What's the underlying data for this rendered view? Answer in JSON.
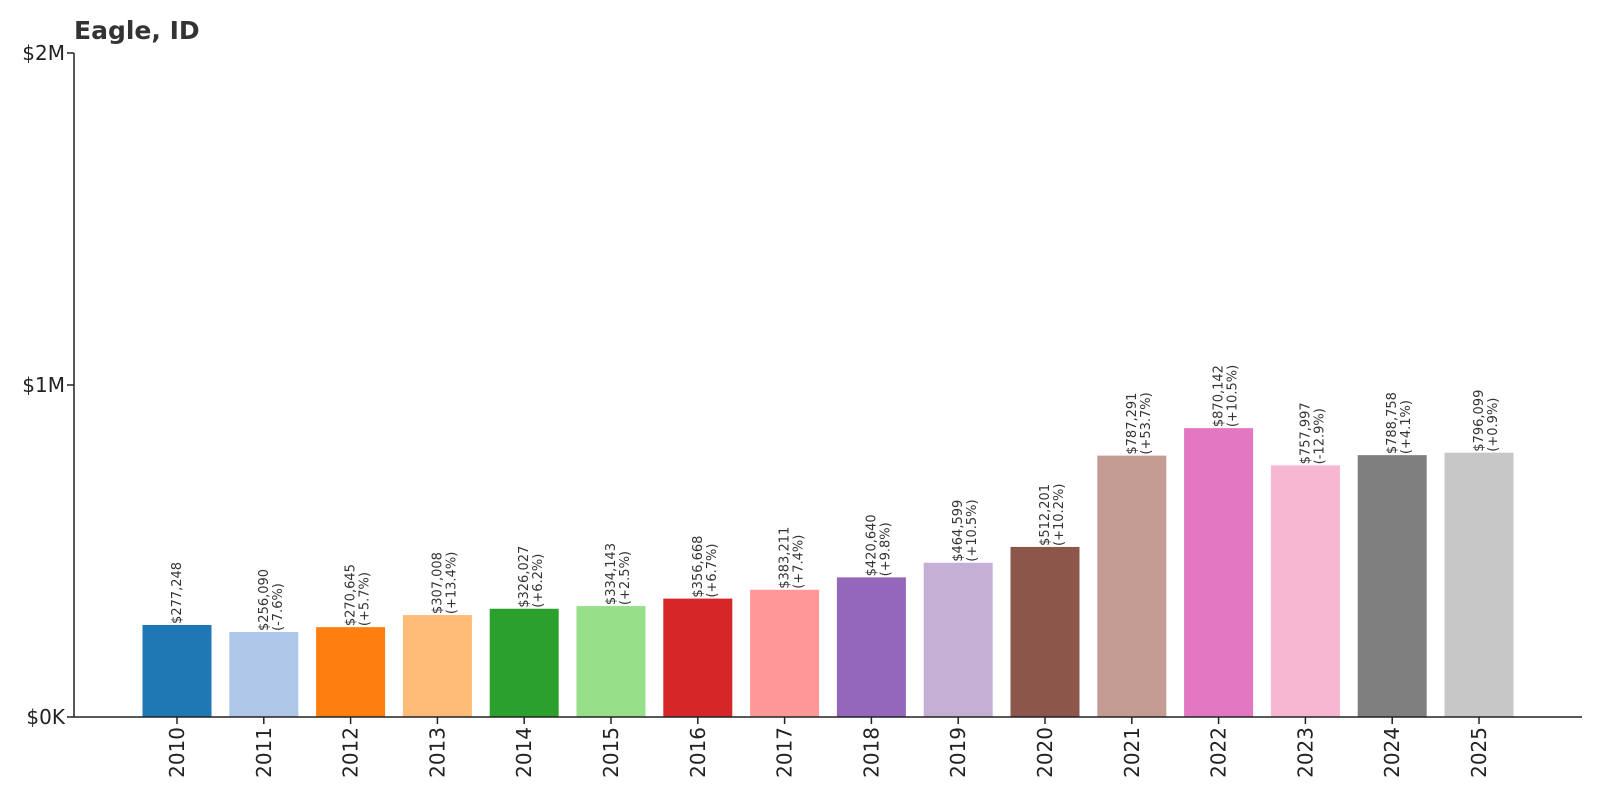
{
  "chart_data": {
    "type": "bar",
    "title": "Eagle, ID",
    "xlabel": "",
    "ylabel": "",
    "ylim": [
      0,
      2000000
    ],
    "yticks": [
      {
        "value": 0,
        "label": "$0K"
      },
      {
        "value": 1000000,
        "label": "$1M"
      },
      {
        "value": 2000000,
        "label": "$2M"
      }
    ],
    "grid": false,
    "categories": [
      "2010",
      "2011",
      "2012",
      "2013",
      "2014",
      "2015",
      "2016",
      "2017",
      "2018",
      "2019",
      "2020",
      "2021",
      "2022",
      "2023",
      "2024",
      "2025"
    ],
    "values": [
      277248,
      256090,
      270645,
      307008,
      326027,
      334143,
      356668,
      383211,
      420640,
      464599,
      512201,
      787291,
      870142,
      757997,
      788758,
      796099
    ],
    "value_labels": [
      "$277,248",
      "$256,090",
      "$270,645",
      "$307,008",
      "$326,027",
      "$334,143",
      "$356,668",
      "$383,211",
      "$420,640",
      "$464,599",
      "$512,201",
      "$787,291",
      "$870,142",
      "$757,997",
      "$788,758",
      "$796,099"
    ],
    "change_labels": [
      "",
      "(-7.6%)",
      "(+5.7%)",
      "(+13.4%)",
      "(+6.2%)",
      "(+2.5%)",
      "(+6.7%)",
      "(+7.4%)",
      "(+9.8%)",
      "(+10.5%)",
      "(+10.2%)",
      "(+53.7%)",
      "(+10.5%)",
      "(-12.9%)",
      "(+4.1%)",
      "(+0.9%)"
    ],
    "colors": [
      "#1f77b4",
      "#aec7e8",
      "#ff7f0e",
      "#ffbb78",
      "#2ca02c",
      "#98df8a",
      "#d62728",
      "#ff9896",
      "#9467bd",
      "#c5b0d5",
      "#8c564b",
      "#c49c94",
      "#e377c2",
      "#f7b6d2",
      "#7f7f7f",
      "#c7c7c7"
    ]
  }
}
